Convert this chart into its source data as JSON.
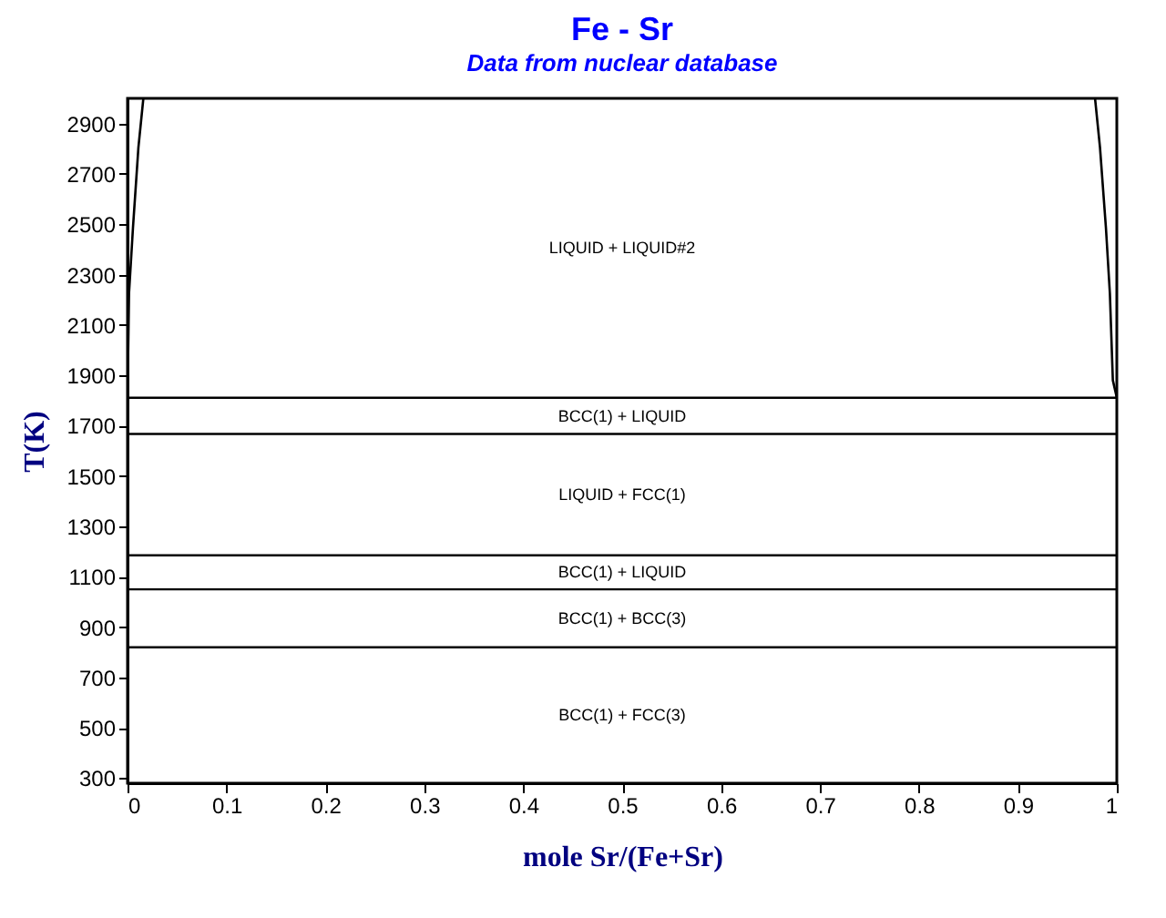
{
  "chart_data": {
    "type": "line",
    "title": "Fe - Sr",
    "subtitle": "Data from nuclear database",
    "xlabel": "mole Sr/(Fe+Sr)",
    "ylabel": "T(K)",
    "xlim": [
      0,
      1
    ],
    "ylim": [
      280,
      3000
    ],
    "xticks": [
      {
        "value": 0,
        "label": "0"
      },
      0.1,
      0.2,
      0.3,
      0.4,
      0.5,
      0.6,
      0.7,
      0.8,
      0.9,
      {
        "value": 1,
        "label": "1"
      }
    ],
    "yticks": [
      300,
      500,
      700,
      900,
      1100,
      1300,
      1500,
      1700,
      1900,
      2100,
      2300,
      2500,
      2700,
      2900
    ],
    "grid": false,
    "marker": "none",
    "line_style": "solid",
    "series": [
      {
        "color": "#000000",
        "x": [
          0,
          0.0015,
          0.0055,
          0.011,
          0.016
        ],
        "values": [
          1811,
          2225,
          2486,
          2805,
          3000
        ]
      },
      {
        "color": "#000000",
        "x": [
          1,
          0.996,
          0.993,
          0.989,
          0.983,
          0.978
        ],
        "values": [
          1811,
          1880,
          2225,
          2486,
          2805,
          3000
        ]
      }
    ],
    "ref_lines": [
      {
        "axis": "y",
        "value": 1811,
        "color": "#000000",
        "line_style": "solid"
      },
      {
        "axis": "y",
        "value": 1667,
        "color": "#000000",
        "line_style": "solid"
      },
      {
        "axis": "y",
        "value": 1185,
        "color": "#000000",
        "line_style": "solid"
      },
      {
        "axis": "y",
        "value": 1050,
        "color": "#000000",
        "line_style": "solid"
      },
      {
        "axis": "y",
        "value": 820,
        "color": "#000000",
        "line_style": "solid"
      }
    ],
    "annotations": [
      "LIQUID + LIQUID#2",
      "BCC(1) + LIQUID",
      "LIQUID + FCC(1)",
      "BCC(1) + LIQUID",
      "BCC(1) + BCC(3)",
      "BCC(1) + FCC(3)"
    ]
  }
}
